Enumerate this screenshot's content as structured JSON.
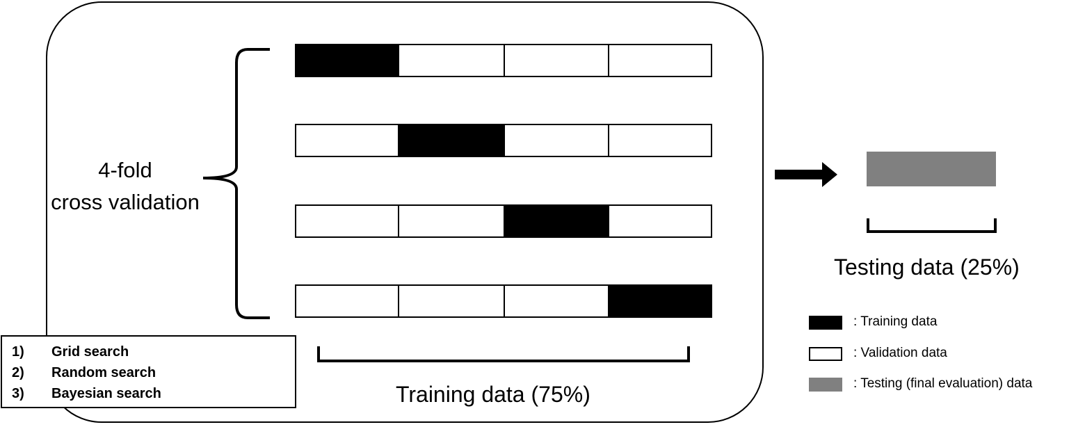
{
  "cv": {
    "line1": "4-fold",
    "line2": "cross validation"
  },
  "folds": [
    {
      "segments": [
        "train",
        "val",
        "val",
        "val"
      ]
    },
    {
      "segments": [
        "val",
        "train",
        "val",
        "val"
      ]
    },
    {
      "segments": [
        "val",
        "val",
        "train",
        "val"
      ]
    },
    {
      "segments": [
        "val",
        "val",
        "val",
        "train"
      ]
    }
  ],
  "training_label": "Training data (75%)",
  "testing_label": "Testing data (25%)",
  "methods": [
    {
      "num": "1)",
      "name": "Grid search"
    },
    {
      "num": "2)",
      "name": "Random search"
    },
    {
      "num": "3)",
      "name": "Bayesian search"
    }
  ],
  "legend": [
    {
      "key": "train",
      "color": "#000000",
      "label": ": Training data"
    },
    {
      "key": "val",
      "color": "#ffffff",
      "label": ": Validation data"
    },
    {
      "key": "test",
      "color": "#808080",
      "label": ": Testing (final evaluation) data"
    }
  ],
  "colors": {
    "training": "#000000",
    "validation": "#ffffff",
    "testing": "#808080"
  }
}
